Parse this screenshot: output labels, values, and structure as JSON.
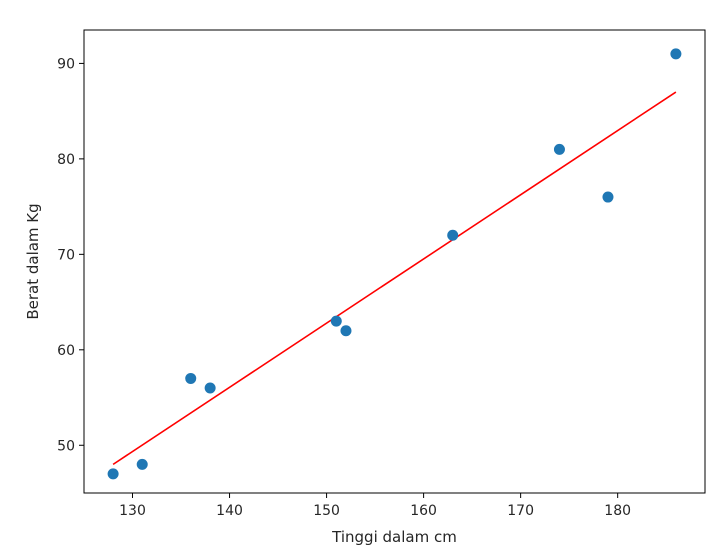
{
  "chart_data": {
    "type": "scatter",
    "xlabel": "Tinggi dalam cm",
    "ylabel": "Berat dalam Kg",
    "xlim": [
      125,
      189
    ],
    "ylim": [
      45,
      93.5
    ],
    "x_ticks": [
      130,
      140,
      150,
      160,
      170,
      180
    ],
    "y_ticks": [
      50,
      60,
      70,
      80,
      90
    ],
    "grid": false,
    "series": [
      {
        "type": "scatter",
        "color": "#1f77b4",
        "points": [
          {
            "x": 128,
            "y": 47
          },
          {
            "x": 131,
            "y": 48
          },
          {
            "x": 136,
            "y": 57
          },
          {
            "x": 138,
            "y": 56
          },
          {
            "x": 151,
            "y": 63
          },
          {
            "x": 152,
            "y": 62
          },
          {
            "x": 163,
            "y": 72
          },
          {
            "x": 174,
            "y": 81
          },
          {
            "x": 179,
            "y": 76
          },
          {
            "x": 186,
            "y": 91
          }
        ]
      },
      {
        "type": "line",
        "color": "#ff0000",
        "points": [
          {
            "x": 128,
            "y": 48.0
          },
          {
            "x": 186,
            "y": 87.0
          }
        ]
      }
    ]
  }
}
